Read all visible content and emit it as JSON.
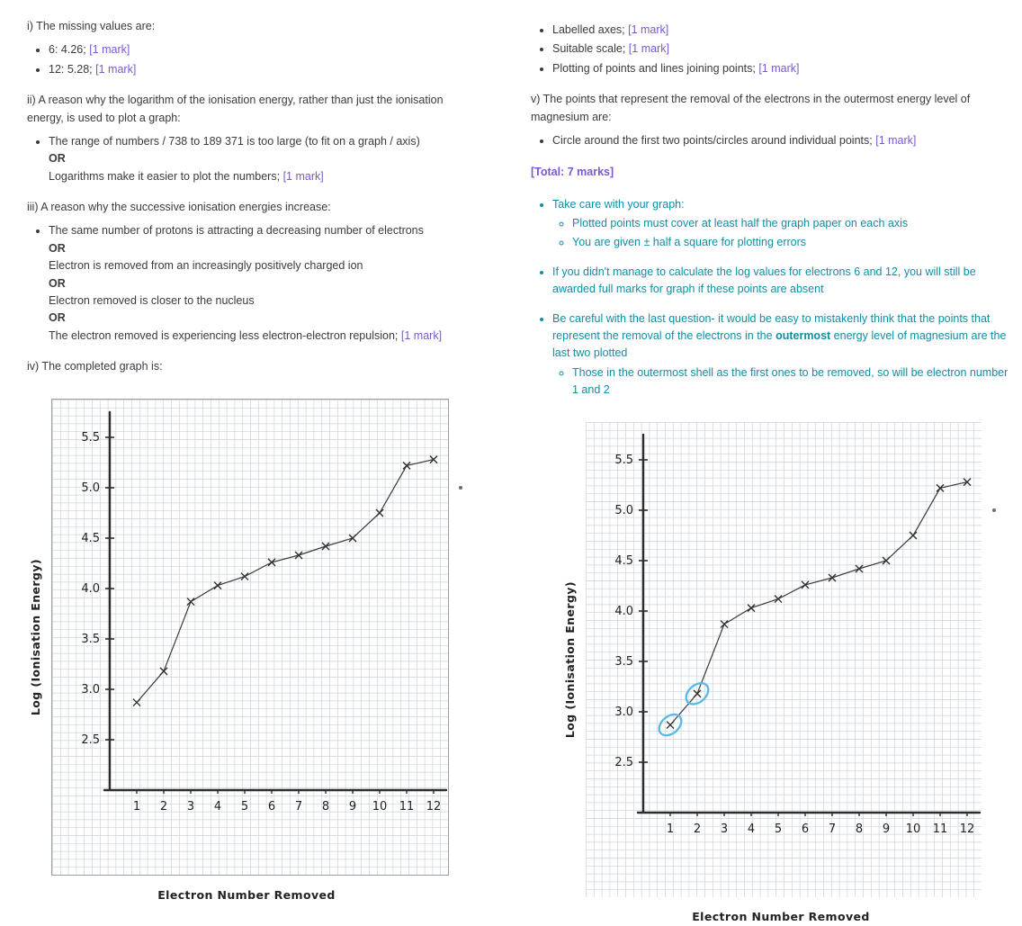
{
  "colors": {
    "text": "#3a3a41",
    "mark": "#7a58d1",
    "tip": "#0e8fa6",
    "circle": "#58b9e8",
    "axis": "#2d2d2d",
    "grid": "#ccd4db"
  },
  "left": {
    "section_i": {
      "heading": "i) The missing values are:",
      "items": [
        {
          "text": "6: 4.26;",
          "mark": "[1 mark]"
        },
        {
          "text": "12: 5.28;",
          "mark": "[1 mark]"
        }
      ]
    },
    "section_ii": {
      "heading": "ii) A reason why the logarithm of the ionisation energy, rather than just the ionisation energy, is used to plot a graph:",
      "item": {
        "line1": "The range of numbers / 738 to 189 371 is too large (to fit on a graph / axis)",
        "or": "OR",
        "line2": "Logarithms make it easier to plot the numbers;",
        "mark": "[1 mark]"
      }
    },
    "section_iii": {
      "heading": "iii) A reason why the successive ionisation energies increase:",
      "item": {
        "line1": "The same number of protons is attracting a decreasing number of electrons",
        "or1": "OR",
        "line2": "Electron is removed from an increasingly positively charged ion",
        "or2": "OR",
        "line3": "Electron removed is closer to the nucleus",
        "or3": "OR",
        "line4": "The electron removed is experiencing less electron-electron repulsion;",
        "mark": "[1 mark]"
      }
    },
    "section_iv": {
      "heading": "iv) The completed graph is:"
    }
  },
  "right": {
    "mark_items": [
      {
        "text": "Labelled axes;",
        "mark": "[1 mark]"
      },
      {
        "text": "Suitable scale;",
        "mark": "[1 mark]"
      },
      {
        "text": "Plotting of points and lines joining points;",
        "mark": "[1 mark]"
      }
    ],
    "section_v": {
      "heading": "v) The points that represent the removal of the electrons in the outermost energy level of magnesium are:",
      "item": {
        "text": "Circle around the first two points/circles around individual points;",
        "mark": "[1 mark]"
      }
    },
    "total": "[Total: 7 marks]",
    "tips": {
      "tip1": {
        "text": "Take care with your graph:",
        "subs": [
          "Plotted points must cover at least half the graph paper on each axis",
          "You are given ± half a square for plotting errors"
        ]
      },
      "tip2": "If you didn't manage to calculate the log values for electrons 6 and 12, you will still be awarded full marks for graph if these points are absent",
      "tip3": {
        "pre": "Be careful with the last question- it would be easy to mistakenly think that the points that represent the removal of the electrons in the ",
        "bold": "outermost",
        "post": " energy level of magnesium are the last two plotted",
        "sub": "Those in the outermost shell as the first ones to be removed, so will be electron number 1 and 2"
      }
    }
  },
  "chart_data": [
    {
      "type": "line",
      "xlabel": "Electron Number Removed",
      "ylabel": "Log (Ionisation Energy)",
      "x": [
        1,
        2,
        3,
        4,
        5,
        6,
        7,
        8,
        9,
        10,
        11,
        12
      ],
      "y": [
        2.87,
        3.18,
        3.87,
        4.03,
        4.12,
        4.26,
        4.33,
        4.42,
        4.5,
        4.75,
        5.22,
        5.28
      ],
      "xticks": [
        "1",
        "2",
        "3",
        "4",
        "5",
        "6",
        "7",
        "8",
        "9",
        "10",
        "11",
        "12"
      ],
      "yticks": [
        "2.5",
        "3.0",
        "3.5",
        "4.0",
        "4.5",
        "5.0",
        "5.5"
      ],
      "ytick_values": [
        2.5,
        3.0,
        3.5,
        4.0,
        4.5,
        5.0,
        5.5
      ],
      "ylim": [
        2.0,
        5.9
      ],
      "grid": true,
      "marker": "x",
      "circled_points": []
    },
    {
      "type": "line",
      "xlabel": "Electron Number Removed",
      "ylabel": "Log (Ionisation Energy)",
      "x": [
        1,
        2,
        3,
        4,
        5,
        6,
        7,
        8,
        9,
        10,
        11,
        12
      ],
      "y": [
        2.87,
        3.18,
        3.87,
        4.03,
        4.12,
        4.26,
        4.33,
        4.42,
        4.5,
        4.75,
        5.22,
        5.28
      ],
      "xticks": [
        "1",
        "2",
        "3",
        "4",
        "5",
        "6",
        "7",
        "8",
        "9",
        "10",
        "11",
        "12"
      ],
      "yticks": [
        "2.5",
        "3.0",
        "3.5",
        "4.0",
        "4.5",
        "5.0",
        "5.5"
      ],
      "ytick_values": [
        2.5,
        3.0,
        3.5,
        4.0,
        4.5,
        5.0,
        5.5
      ],
      "ylim": [
        2.0,
        5.9
      ],
      "grid": true,
      "marker": "x",
      "circled_points": [
        1,
        2
      ]
    }
  ]
}
